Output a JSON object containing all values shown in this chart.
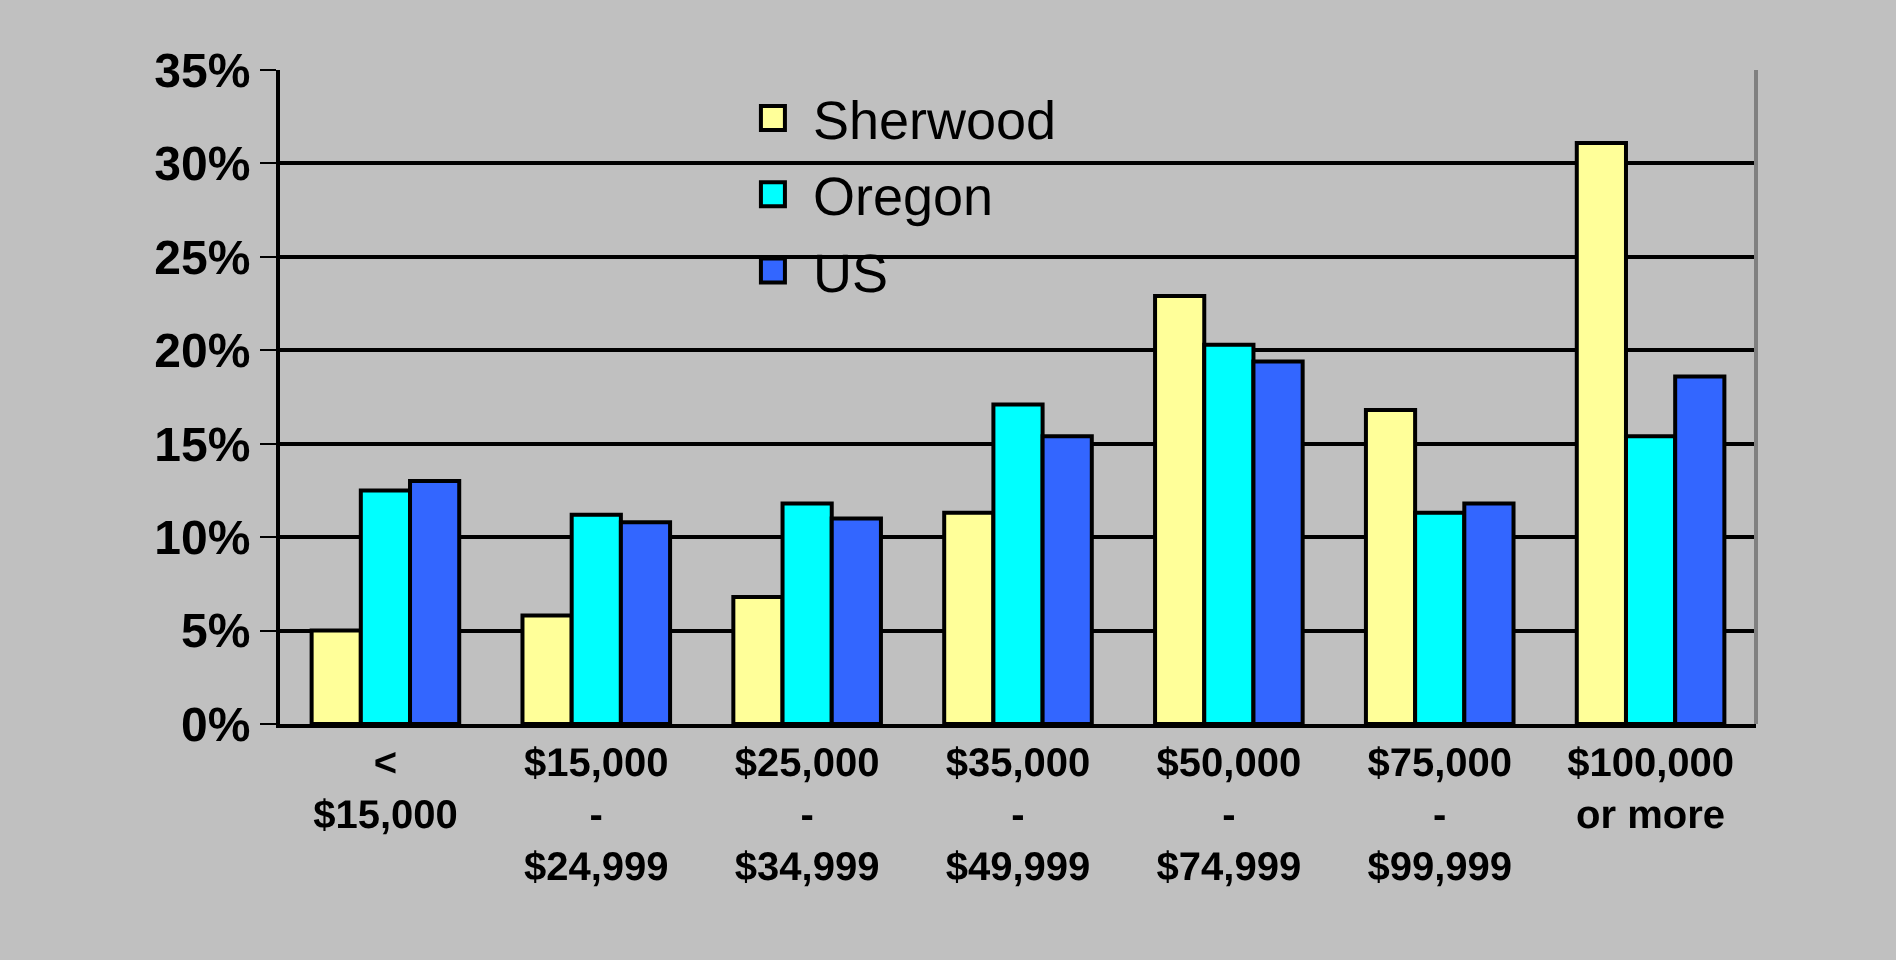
{
  "chart_data": {
    "type": "bar",
    "categories": [
      "<\n$15,000",
      "$15,000\n-\n$24,999",
      "$25,000\n-\n$34,999",
      "$35,000\n-\n$49,999",
      "$50,000\n-\n$74,999",
      "$75,000\n-\n$99,999",
      "$100,000\nor more"
    ],
    "series": [
      {
        "name": "Sherwood",
        "color": "#ffff99",
        "values": [
          5.0,
          5.8,
          6.8,
          11.3,
          22.9,
          16.8,
          31.1
        ]
      },
      {
        "name": "Oregon",
        "color": "#00ffff",
        "values": [
          12.5,
          11.2,
          11.8,
          17.1,
          20.3,
          11.3,
          15.4
        ]
      },
      {
        "name": "US",
        "color": "#3366ff",
        "values": [
          13.0,
          10.8,
          11.0,
          15.4,
          19.4,
          11.8,
          18.6
        ]
      }
    ],
    "ylim": [
      0,
      35
    ],
    "yticks": [
      {
        "value": 0,
        "label": "0%"
      },
      {
        "value": 5,
        "label": "5%"
      },
      {
        "value": 10,
        "label": "10%"
      },
      {
        "value": 15,
        "label": "15%"
      },
      {
        "value": 20,
        "label": "20%"
      },
      {
        "value": 25,
        "label": "25%"
      },
      {
        "value": 30,
        "label": "30%"
      },
      {
        "value": 35,
        "label": "35%"
      }
    ],
    "grid": "y",
    "legend": "top"
  }
}
